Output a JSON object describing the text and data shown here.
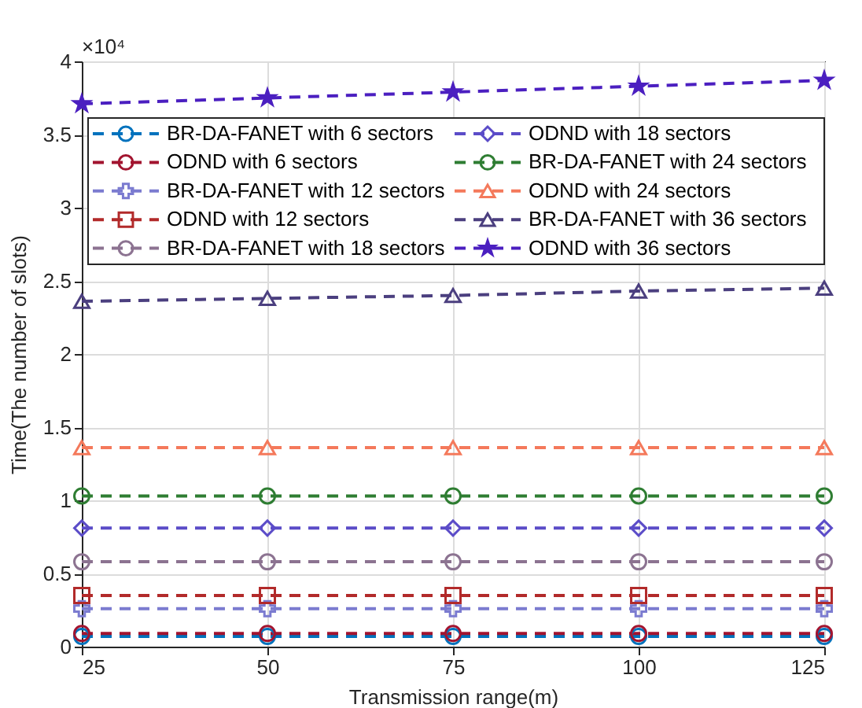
{
  "chart_data": {
    "type": "line",
    "xlabel": "Transmission range(m)",
    "ylabel": "Time(The number of slots)",
    "annotations": [
      "×10⁴"
    ],
    "x": [
      25,
      50,
      75,
      100,
      125
    ],
    "xlim": [
      25,
      125
    ],
    "xticks": [
      25,
      50,
      75,
      100,
      125
    ],
    "ylim": [
      0,
      4
    ],
    "yticks": [
      0,
      0.5,
      1,
      1.5,
      2,
      2.5,
      3,
      3.5,
      4
    ],
    "grid": true,
    "legend": "top",
    "line_style": "dashed",
    "series": [
      {
        "name": "BR-DA-FANET with 6 sectors",
        "color": "#0072bd",
        "marker": "circle",
        "values": [
          0.07,
          0.07,
          0.07,
          0.07,
          0.07
        ]
      },
      {
        "name": "ODND with 6 sectors",
        "color": "#a2142f",
        "marker": "circle",
        "values": [
          0.09,
          0.09,
          0.09,
          0.09,
          0.09
        ]
      },
      {
        "name": "BR-DA-FANET with 12 sectors",
        "color": "#7b7bd0",
        "marker": "cross",
        "values": [
          0.26,
          0.26,
          0.26,
          0.26,
          0.26
        ]
      },
      {
        "name": "ODND with 12 sectors",
        "color": "#b22a2a",
        "marker": "square",
        "values": [
          0.35,
          0.35,
          0.35,
          0.35,
          0.35
        ]
      },
      {
        "name": "BR-DA-FANET with 18 sectors",
        "color": "#8c7391",
        "marker": "circle",
        "values": [
          0.58,
          0.58,
          0.58,
          0.58,
          0.58
        ]
      },
      {
        "name": "ODND with 18 sectors",
        "color": "#5b4cc8",
        "marker": "diamond",
        "values": [
          0.81,
          0.81,
          0.81,
          0.81,
          0.81
        ]
      },
      {
        "name": "BR-DA-FANET with 24 sectors",
        "color": "#2e7d32",
        "marker": "circle",
        "values": [
          1.03,
          1.03,
          1.03,
          1.03,
          1.03
        ]
      },
      {
        "name": "ODND with 24 sectors",
        "color": "#f4795b",
        "marker": "triangle",
        "values": [
          1.36,
          1.36,
          1.36,
          1.36,
          1.36
        ]
      },
      {
        "name": "BR-DA-FANET with 36 sectors",
        "color": "#4b3f7f",
        "marker": "triangle",
        "values": [
          2.36,
          2.38,
          2.4,
          2.43,
          2.45
        ]
      },
      {
        "name": "ODND with 36 sectors",
        "color": "#4b1fc0",
        "marker": "star",
        "values": [
          3.71,
          3.75,
          3.79,
          3.83,
          3.87
        ]
      }
    ]
  }
}
